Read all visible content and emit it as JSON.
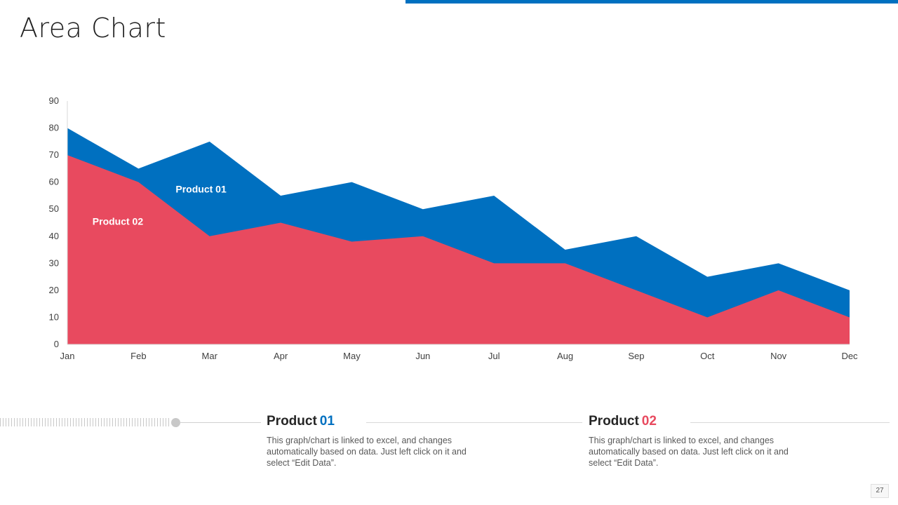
{
  "page": {
    "title": "Area Chart",
    "page_number": "27"
  },
  "colors": {
    "accent_blue": "#0070c0",
    "accent_red": "#e84a5f"
  },
  "chart_data": {
    "type": "area",
    "categories": [
      "Jan",
      "Feb",
      "Mar",
      "Apr",
      "May",
      "Jun",
      "Jul",
      "Aug",
      "Sep",
      "Oct",
      "Nov",
      "Dec"
    ],
    "series": [
      {
        "name": "Product 01",
        "values": [
          80,
          65,
          75,
          55,
          60,
          50,
          55,
          35,
          40,
          25,
          30,
          20
        ],
        "color": "#0070c0"
      },
      {
        "name": "Product 02",
        "values": [
          70,
          60,
          40,
          45,
          38,
          40,
          30,
          30,
          20,
          10,
          20,
          10
        ],
        "color": "#e84a5f"
      }
    ],
    "ylim": [
      0,
      90
    ],
    "yticks": [
      0,
      10,
      20,
      30,
      40,
      50,
      60,
      70,
      80,
      90
    ],
    "grid": false,
    "legend": "inline labels inside areas",
    "title": "",
    "xlabel": "",
    "ylabel": ""
  },
  "legend": [
    {
      "word": "Product",
      "number": "01",
      "color": "#0070c0",
      "description": "This graph/chart is linked to excel, and changes automatically based on data. Just left click on it and select “Edit Data”."
    },
    {
      "word": "Product",
      "number": "02",
      "color": "#e84a5f",
      "description": "This graph/chart is linked to excel, and changes automatically based on data. Just left click on it and select “Edit Data”."
    }
  ]
}
